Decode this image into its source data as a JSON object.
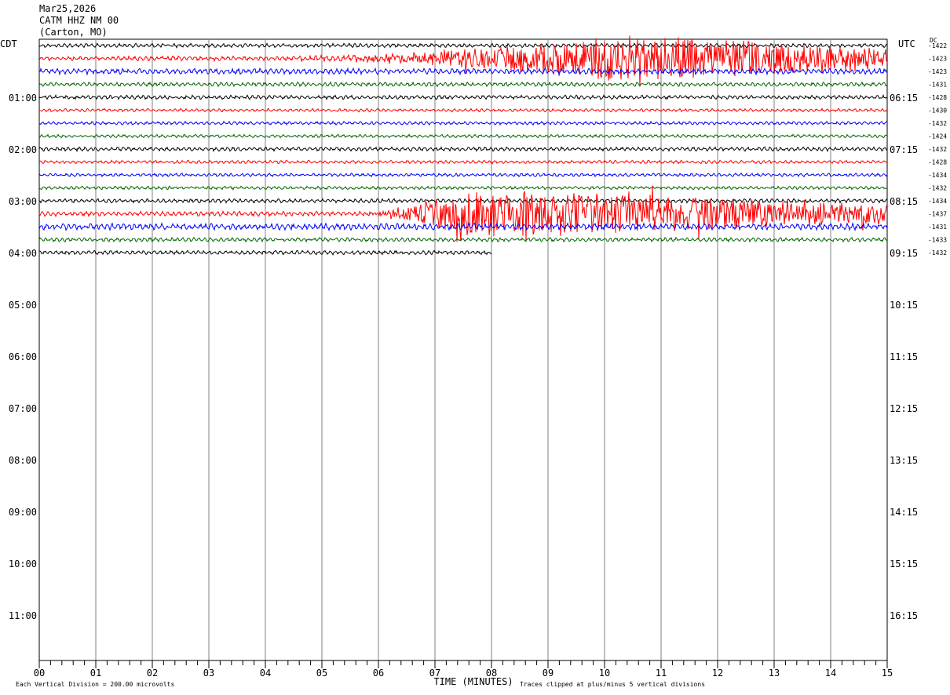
{
  "header": {
    "date": "Mar25,2026",
    "station": "CATM HHZ NM 00",
    "location": "(Carton, MO)"
  },
  "left_tz": "CDT",
  "right_tz": "UTC",
  "dc_label": "DC",
  "footer": {
    "scale_note": "Each Vertical Division =  200.00 microvolts",
    "xlabel": "TIME (MINUTES)",
    "clip_note": "Traces clipped at plus/minus 5 vertical divisions"
  },
  "colors": {
    "trace_cycle": [
      "#000000",
      "#ff0000",
      "#0000ff",
      "#006400"
    ],
    "grid": "#808080"
  },
  "chart_data": {
    "type": "line",
    "title": "",
    "xlabel": "TIME (MINUTES)",
    "xlim": [
      0,
      15
    ],
    "x_ticks": [
      "00",
      "01",
      "02",
      "03",
      "04",
      "05",
      "06",
      "07",
      "08",
      "09",
      "10",
      "11",
      "12",
      "13",
      "14",
      "15"
    ],
    "hour_rows": [
      {
        "cdt": "",
        "utc": ""
      },
      {
        "cdt": "01:00",
        "utc": "06:15"
      },
      {
        "cdt": "02:00",
        "utc": "07:15"
      },
      {
        "cdt": "03:00",
        "utc": "08:15"
      },
      {
        "cdt": "04:00",
        "utc": "09:15"
      },
      {
        "cdt": "05:00",
        "utc": "10:15"
      },
      {
        "cdt": "06:00",
        "utc": "11:15"
      },
      {
        "cdt": "07:00",
        "utc": "12:15"
      },
      {
        "cdt": "08:00",
        "utc": "13:15"
      },
      {
        "cdt": "09:00",
        "utc": "14:15"
      },
      {
        "cdt": "10:00",
        "utc": "15:15"
      },
      {
        "cdt": "11:00",
        "utc": "16:15"
      }
    ],
    "dc_offsets": [
      "-1422",
      "-1423",
      "-1423",
      "-1431",
      "-1428",
      "-1430",
      "-1432",
      "-1424",
      "-1432",
      "-1428",
      "-1434",
      "-1432",
      "-1434",
      "-1437",
      "-1431",
      "-1433",
      "-1432"
    ],
    "traces": [
      {
        "amp": 2.5,
        "events": []
      },
      {
        "amp": 3,
        "events": [
          {
            "start": 3.5,
            "peak": 10.3,
            "end": 15,
            "amp": 30
          }
        ]
      },
      {
        "amp": 3.5,
        "events": []
      },
      {
        "amp": 2.5,
        "events": []
      },
      {
        "amp": 2.5,
        "events": []
      },
      {
        "amp": 2,
        "events": []
      },
      {
        "amp": 2,
        "events": []
      },
      {
        "amp": 2,
        "events": []
      },
      {
        "amp": 2.5,
        "events": []
      },
      {
        "amp": 2,
        "events": []
      },
      {
        "amp": 2,
        "events": []
      },
      {
        "amp": 2,
        "events": []
      },
      {
        "amp": 2.5,
        "events": []
      },
      {
        "amp": 3,
        "events": [
          {
            "start": 5.2,
            "peak": 7.7,
            "end": 15,
            "amp": 30
          }
        ]
      },
      {
        "amp": 4,
        "events": []
      },
      {
        "amp": 2.5,
        "events": []
      },
      {
        "amp": 2.5,
        "events": [],
        "end_minute": 8
      }
    ]
  }
}
